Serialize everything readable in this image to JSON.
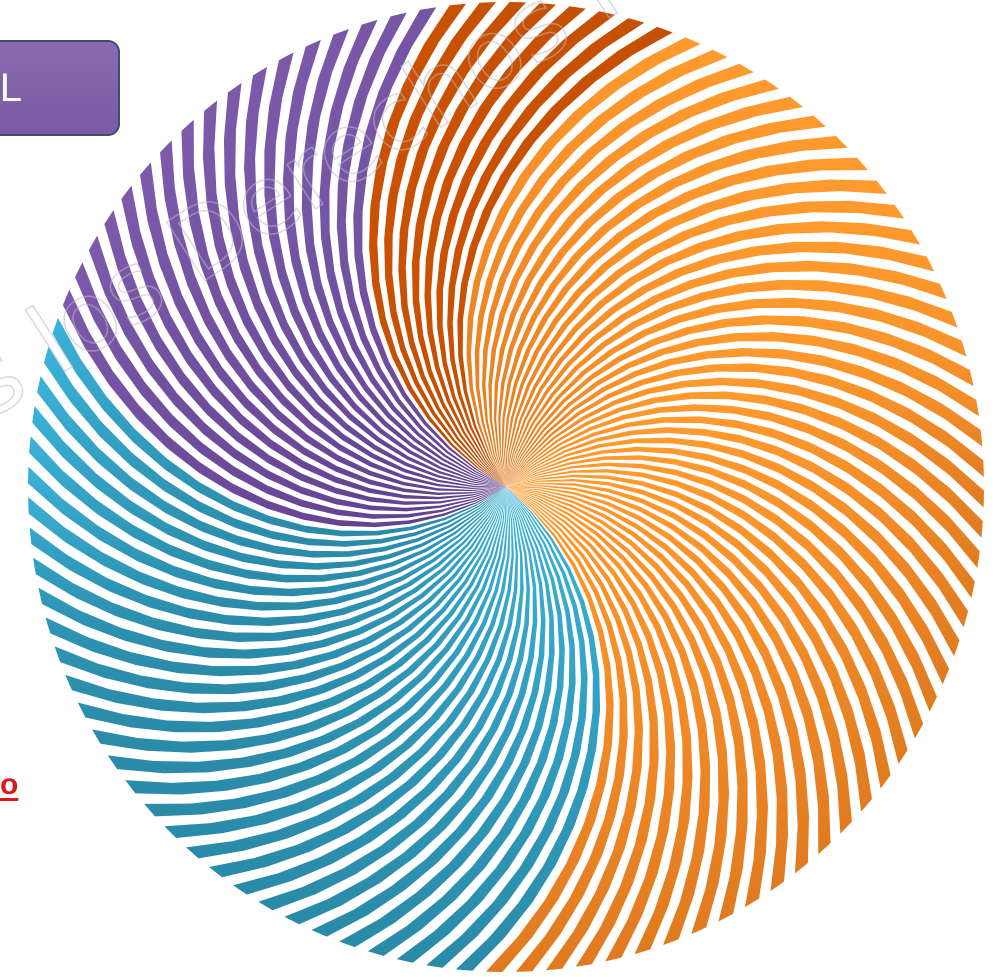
{
  "label_box": {
    "text": "L"
  },
  "link_fragment": {
    "text": "o"
  },
  "watermark": {
    "text": "s los Derechos Rese"
  },
  "swirl": {
    "stripe_count": 100,
    "colors": {
      "orange": "#f08a28",
      "orange_dark": "#c85a10",
      "purple": "#6f4f9c",
      "blue": "#33aace",
      "stripe_gap": "#ffffff"
    }
  }
}
